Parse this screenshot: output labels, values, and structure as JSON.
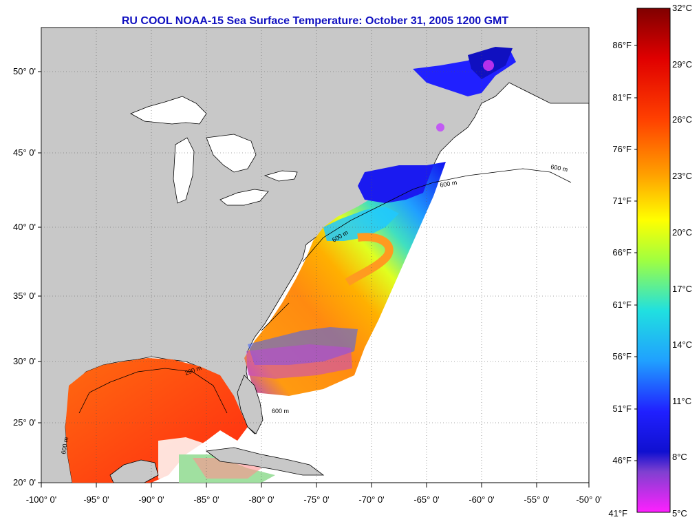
{
  "title": "RU COOL  NOAA-15  Sea Surface Temperature:  October 31, 2005 1200 GMT",
  "lat_labels": [
    "50° 0'",
    "45° 0'",
    "40° 0'",
    "35° 0'",
    "30° 0'",
    "25° 0'",
    "20° 0'"
  ],
  "lon_labels": [
    "-100° 0'",
    "-95° 0'",
    "-90° 0'",
    "-85° 0'",
    "-80° 0'",
    "-75° 0'",
    "-70° 0'",
    "-65° 0'",
    "-60° 0'",
    "-55° 0'",
    "-50° 0'"
  ],
  "colorbar": {
    "celsius": [
      "32°C",
      "29°C",
      "26°C",
      "23°C",
      "20°C",
      "17°C",
      "14°C",
      "11°C",
      "8°C",
      "5°C"
    ],
    "fahrenheit": [
      "86°F",
      "81°F",
      "76°F",
      "71°F",
      "66°F",
      "61°F",
      "56°F",
      "51°F",
      "46°F",
      "41°F"
    ]
  },
  "contour_labels": [
    "200 m",
    "600 m",
    "600 m",
    "600 m",
    "600 m",
    "600 m"
  ],
  "colors": {
    "land": "#c8c8c8",
    "title": "#1010c0"
  }
}
